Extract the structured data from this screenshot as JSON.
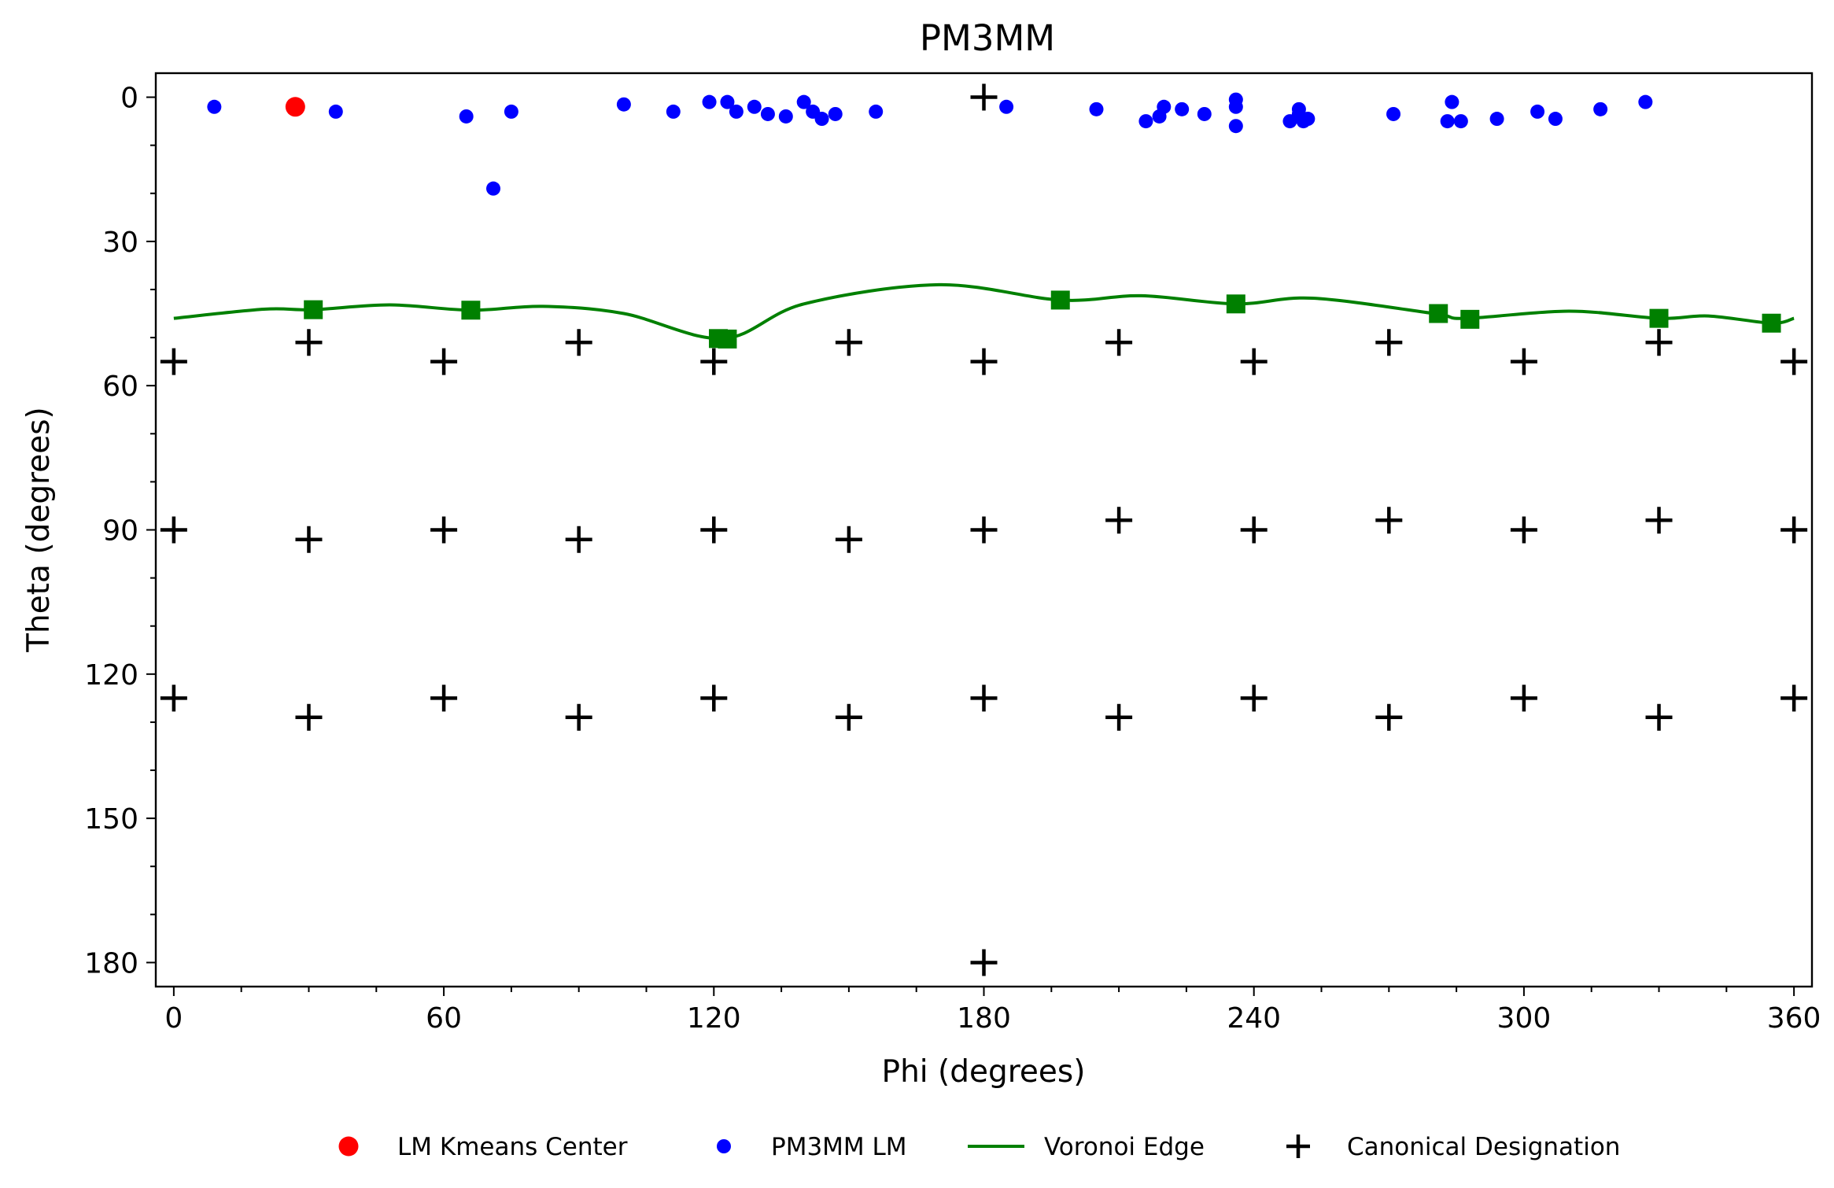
{
  "chart_data": {
    "type": "scatter",
    "title": "PM3MM",
    "xlabel": "Phi (degrees)",
    "ylabel": "Theta (degrees)",
    "xlim": [
      -4,
      364
    ],
    "ylim": [
      185,
      -5
    ],
    "y_inverted": true,
    "xticks": [
      0,
      60,
      120,
      180,
      240,
      300,
      360
    ],
    "yticks": [
      0,
      30,
      60,
      90,
      120,
      150,
      180
    ],
    "grid": false,
    "legend_position": "bottom-center",
    "series": [
      {
        "name": "LM Kmeans Center",
        "marker": "circle",
        "color": "#ff0000",
        "points": [
          [
            27,
            2
          ]
        ]
      },
      {
        "name": "PM3MM LM",
        "marker": "circle",
        "color": "#0000ff",
        "points": [
          [
            9,
            2
          ],
          [
            36,
            3
          ],
          [
            65,
            4
          ],
          [
            71,
            19
          ],
          [
            75,
            3
          ],
          [
            100,
            1.5
          ],
          [
            111,
            3
          ],
          [
            119,
            1
          ],
          [
            123,
            1
          ],
          [
            125,
            3
          ],
          [
            129,
            2
          ],
          [
            132,
            3.5
          ],
          [
            136,
            4
          ],
          [
            140,
            1
          ],
          [
            142,
            3
          ],
          [
            144,
            4.5
          ],
          [
            147,
            3.5
          ],
          [
            156,
            3
          ],
          [
            185,
            2
          ],
          [
            205,
            2.5
          ],
          [
            216,
            5
          ],
          [
            219,
            4
          ],
          [
            220,
            2
          ],
          [
            224,
            2.5
          ],
          [
            229,
            3.5
          ],
          [
            236,
            0.5
          ],
          [
            236,
            2
          ],
          [
            236,
            6
          ],
          [
            248,
            5
          ],
          [
            250,
            2.5
          ],
          [
            250,
            3.5
          ],
          [
            251,
            5
          ],
          [
            252,
            4.5
          ],
          [
            271,
            3.5
          ],
          [
            283,
            5
          ],
          [
            284,
            1
          ],
          [
            286,
            5
          ],
          [
            294,
            4.5
          ],
          [
            303,
            3
          ],
          [
            307,
            4.5
          ],
          [
            317,
            2.5
          ],
          [
            327,
            1
          ]
        ]
      },
      {
        "name": "Voronoi Edge",
        "marker": "line",
        "color": "#008000",
        "curve": [
          [
            0,
            46
          ],
          [
            20,
            44.1
          ],
          [
            31,
            44.2
          ],
          [
            48,
            43.2
          ],
          [
            66,
            44.3
          ],
          [
            82,
            43.5
          ],
          [
            100,
            45
          ],
          [
            122,
            50.2
          ],
          [
            140,
            43
          ],
          [
            170,
            39
          ],
          [
            197,
            42.2
          ],
          [
            215,
            41.3
          ],
          [
            236,
            43
          ],
          [
            253,
            41.8
          ],
          [
            280,
            45
          ],
          [
            287,
            46
          ],
          [
            310,
            44.5
          ],
          [
            330,
            46
          ],
          [
            341,
            45.5
          ],
          [
            355,
            47
          ],
          [
            360,
            46
          ]
        ],
        "vertices": [
          [
            31,
            44.2
          ],
          [
            66,
            44.3
          ],
          [
            121,
            50.2
          ],
          [
            123,
            50.3
          ],
          [
            197,
            42.2
          ],
          [
            236,
            43
          ],
          [
            281,
            45
          ],
          [
            288,
            46.2
          ],
          [
            330,
            46
          ],
          [
            355,
            47
          ]
        ]
      },
      {
        "name": "Canonical Designation",
        "marker": "plus",
        "color": "#000000",
        "points": [
          [
            180,
            0
          ],
          [
            0,
            55
          ],
          [
            30,
            51
          ],
          [
            60,
            55
          ],
          [
            90,
            51
          ],
          [
            120,
            55
          ],
          [
            150,
            51
          ],
          [
            180,
            55
          ],
          [
            210,
            51
          ],
          [
            240,
            55
          ],
          [
            270,
            51
          ],
          [
            300,
            55
          ],
          [
            330,
            51
          ],
          [
            360,
            55
          ],
          [
            0,
            90
          ],
          [
            30,
            92
          ],
          [
            60,
            90
          ],
          [
            90,
            92
          ],
          [
            120,
            90
          ],
          [
            150,
            92
          ],
          [
            180,
            90
          ],
          [
            210,
            88
          ],
          [
            240,
            90
          ],
          [
            270,
            88
          ],
          [
            300,
            90
          ],
          [
            330,
            88
          ],
          [
            360,
            90
          ],
          [
            0,
            125
          ],
          [
            30,
            129
          ],
          [
            60,
            125
          ],
          [
            90,
            129
          ],
          [
            120,
            125
          ],
          [
            150,
            129
          ],
          [
            180,
            125
          ],
          [
            210,
            129
          ],
          [
            240,
            125
          ],
          [
            270,
            129
          ],
          [
            300,
            125
          ],
          [
            330,
            129
          ],
          [
            360,
            125
          ],
          [
            180,
            180
          ]
        ]
      }
    ]
  }
}
